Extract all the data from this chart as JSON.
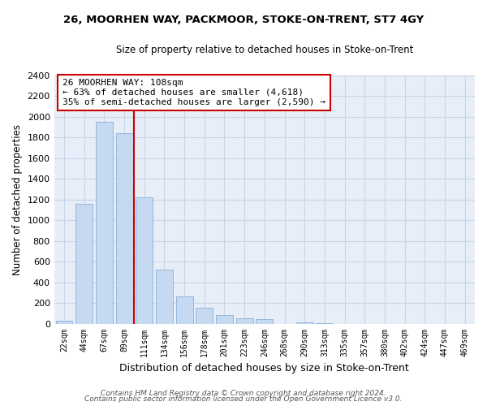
{
  "title": "26, MOORHEN WAY, PACKMOOR, STOKE-ON-TRENT, ST7 4GY",
  "subtitle": "Size of property relative to detached houses in Stoke-on-Trent",
  "xlabel": "Distribution of detached houses by size in Stoke-on-Trent",
  "ylabel": "Number of detached properties",
  "bin_labels": [
    "22sqm",
    "44sqm",
    "67sqm",
    "89sqm",
    "111sqm",
    "134sqm",
    "156sqm",
    "178sqm",
    "201sqm",
    "223sqm",
    "246sqm",
    "268sqm",
    "290sqm",
    "313sqm",
    "335sqm",
    "357sqm",
    "380sqm",
    "402sqm",
    "424sqm",
    "447sqm",
    "469sqm"
  ],
  "bar_heights": [
    30,
    1155,
    1950,
    1840,
    1220,
    520,
    265,
    150,
    80,
    50,
    40,
    0,
    15,
    5,
    0,
    0,
    0,
    0,
    0,
    0,
    0
  ],
  "bar_color": "#c5d9f1",
  "bar_edge_color": "#8ab0d8",
  "vline_x_index": 4,
  "vline_color": "#cc0000",
  "annotation_line1": "26 MOORHEN WAY: 108sqm",
  "annotation_line2": "← 63% of detached houses are smaller (4,618)",
  "annotation_line3": "35% of semi-detached houses are larger (2,590) →",
  "annotation_box_color": "#ffffff",
  "annotation_box_edge": "#cc0000",
  "ylim": [
    0,
    2400
  ],
  "yticks": [
    0,
    200,
    400,
    600,
    800,
    1000,
    1200,
    1400,
    1600,
    1800,
    2000,
    2200,
    2400
  ],
  "footer_line1": "Contains HM Land Registry data © Crown copyright and database right 2024.",
  "footer_line2": "Contains public sector information licensed under the Open Government Licence v3.0.",
  "bg_color": "#ffffff",
  "plot_bg_color": "#e8eef8",
  "grid_color": "#c8d4e8"
}
